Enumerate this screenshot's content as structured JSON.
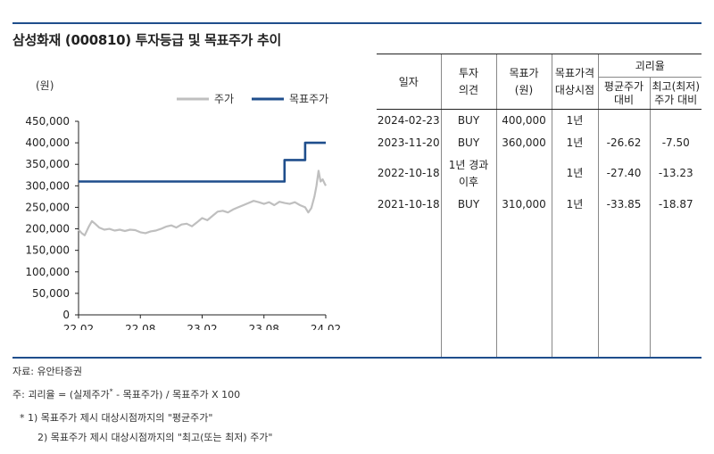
{
  "title": "삼성화재 (000810) 투자등급 및 목표주가 추이",
  "chart_data": {
    "type": "line",
    "ylabel": "(원)",
    "ylim": [
      0,
      450000
    ],
    "yticks": [
      "450,000",
      "400,000",
      "350,000",
      "300,000",
      "250,000",
      "200,000",
      "150,000",
      "100,000",
      "50,000",
      "0"
    ],
    "ytick_values": [
      450000,
      400000,
      350000,
      300000,
      250000,
      200000,
      150000,
      100000,
      50000,
      0
    ],
    "xticks": [
      "22.02",
      "22.08",
      "23.02",
      "23.08",
      "24.02"
    ],
    "xtick_values": [
      0,
      6,
      12,
      18,
      24
    ],
    "legend_position": "top",
    "series": [
      {
        "name": "주가",
        "color": "#bfbfbf",
        "x": [
          0,
          0.3,
          0.6,
          1.0,
          1.3,
          1.6,
          2.0,
          2.5,
          3.0,
          3.5,
          4.0,
          4.5,
          5.0,
          5.5,
          6.0,
          6.5,
          7.0,
          7.5,
          8.0,
          8.5,
          9.0,
          9.5,
          10.0,
          10.5,
          11.0,
          11.5,
          12.0,
          12.5,
          13.0,
          13.5,
          14.0,
          14.5,
          15.0,
          15.5,
          16.0,
          16.5,
          17.0,
          17.5,
          18.0,
          18.5,
          19.0,
          19.5,
          20.0,
          20.5,
          21.0,
          21.5,
          22.0,
          22.3,
          22.6,
          22.9,
          23.1,
          23.3,
          23.5,
          23.7,
          23.9,
          24.0
        ],
        "values": [
          198000,
          190000,
          185000,
          205000,
          218000,
          212000,
          203000,
          198000,
          200000,
          196000,
          198000,
          195000,
          198000,
          197000,
          192000,
          190000,
          194000,
          196000,
          200000,
          205000,
          208000,
          203000,
          210000,
          212000,
          206000,
          215000,
          225000,
          220000,
          230000,
          240000,
          242000,
          238000,
          245000,
          250000,
          255000,
          260000,
          265000,
          262000,
          258000,
          262000,
          255000,
          263000,
          260000,
          258000,
          262000,
          255000,
          250000,
          238000,
          248000,
          275000,
          300000,
          335000,
          310000,
          315000,
          305000,
          300000
        ]
      },
      {
        "name": "목표주가",
        "color": "#1f4e8c",
        "x": [
          0,
          20.0,
          20.0,
          22.0,
          22.0,
          24.0,
          24.0
        ],
        "values": [
          310000,
          310000,
          360000,
          360000,
          400000,
          400000,
          400000
        ]
      }
    ]
  },
  "table": {
    "headers": {
      "date": "일자",
      "opinion": "투자\n의견",
      "target": "목표가\n(원)",
      "horizon": "목표가격\n대상시점",
      "divergence": "괴리율",
      "avg": "평균주가\n대비",
      "high_low": "최고(최저)\n주가 대비"
    },
    "rows": [
      {
        "date": "2024-02-23",
        "opinion": "BUY",
        "target": "400,000",
        "horizon": "1년",
        "avg": "",
        "hl": ""
      },
      {
        "date": "2023-11-20",
        "opinion": "BUY",
        "target": "360,000",
        "horizon": "1년",
        "avg": "-26.62",
        "hl": "-7.50"
      },
      {
        "date": "2022-10-18",
        "opinion": "1년 경과\n이후",
        "target": "",
        "horizon": "1년",
        "avg": "-27.40",
        "hl": "-13.23"
      },
      {
        "date": "2021-10-18",
        "opinion": "BUY",
        "target": "310,000",
        "horizon": "1년",
        "avg": "-33.85",
        "hl": "-18.87"
      }
    ]
  },
  "notes": {
    "source": "자료: 유안타증권",
    "formula_prefix": "주: 괴리율 = (실제주가",
    "formula_sup": "*",
    "formula_suffix": " - 목표주가) / 목표주가 X 100",
    "footnote1": "* 1) 목표주가 제시 대상시점까지의 \"평균주가\"",
    "footnote2": "2) 목표주가 제시 대상시점까지의 \"최고(또는 최저) 주가\""
  }
}
